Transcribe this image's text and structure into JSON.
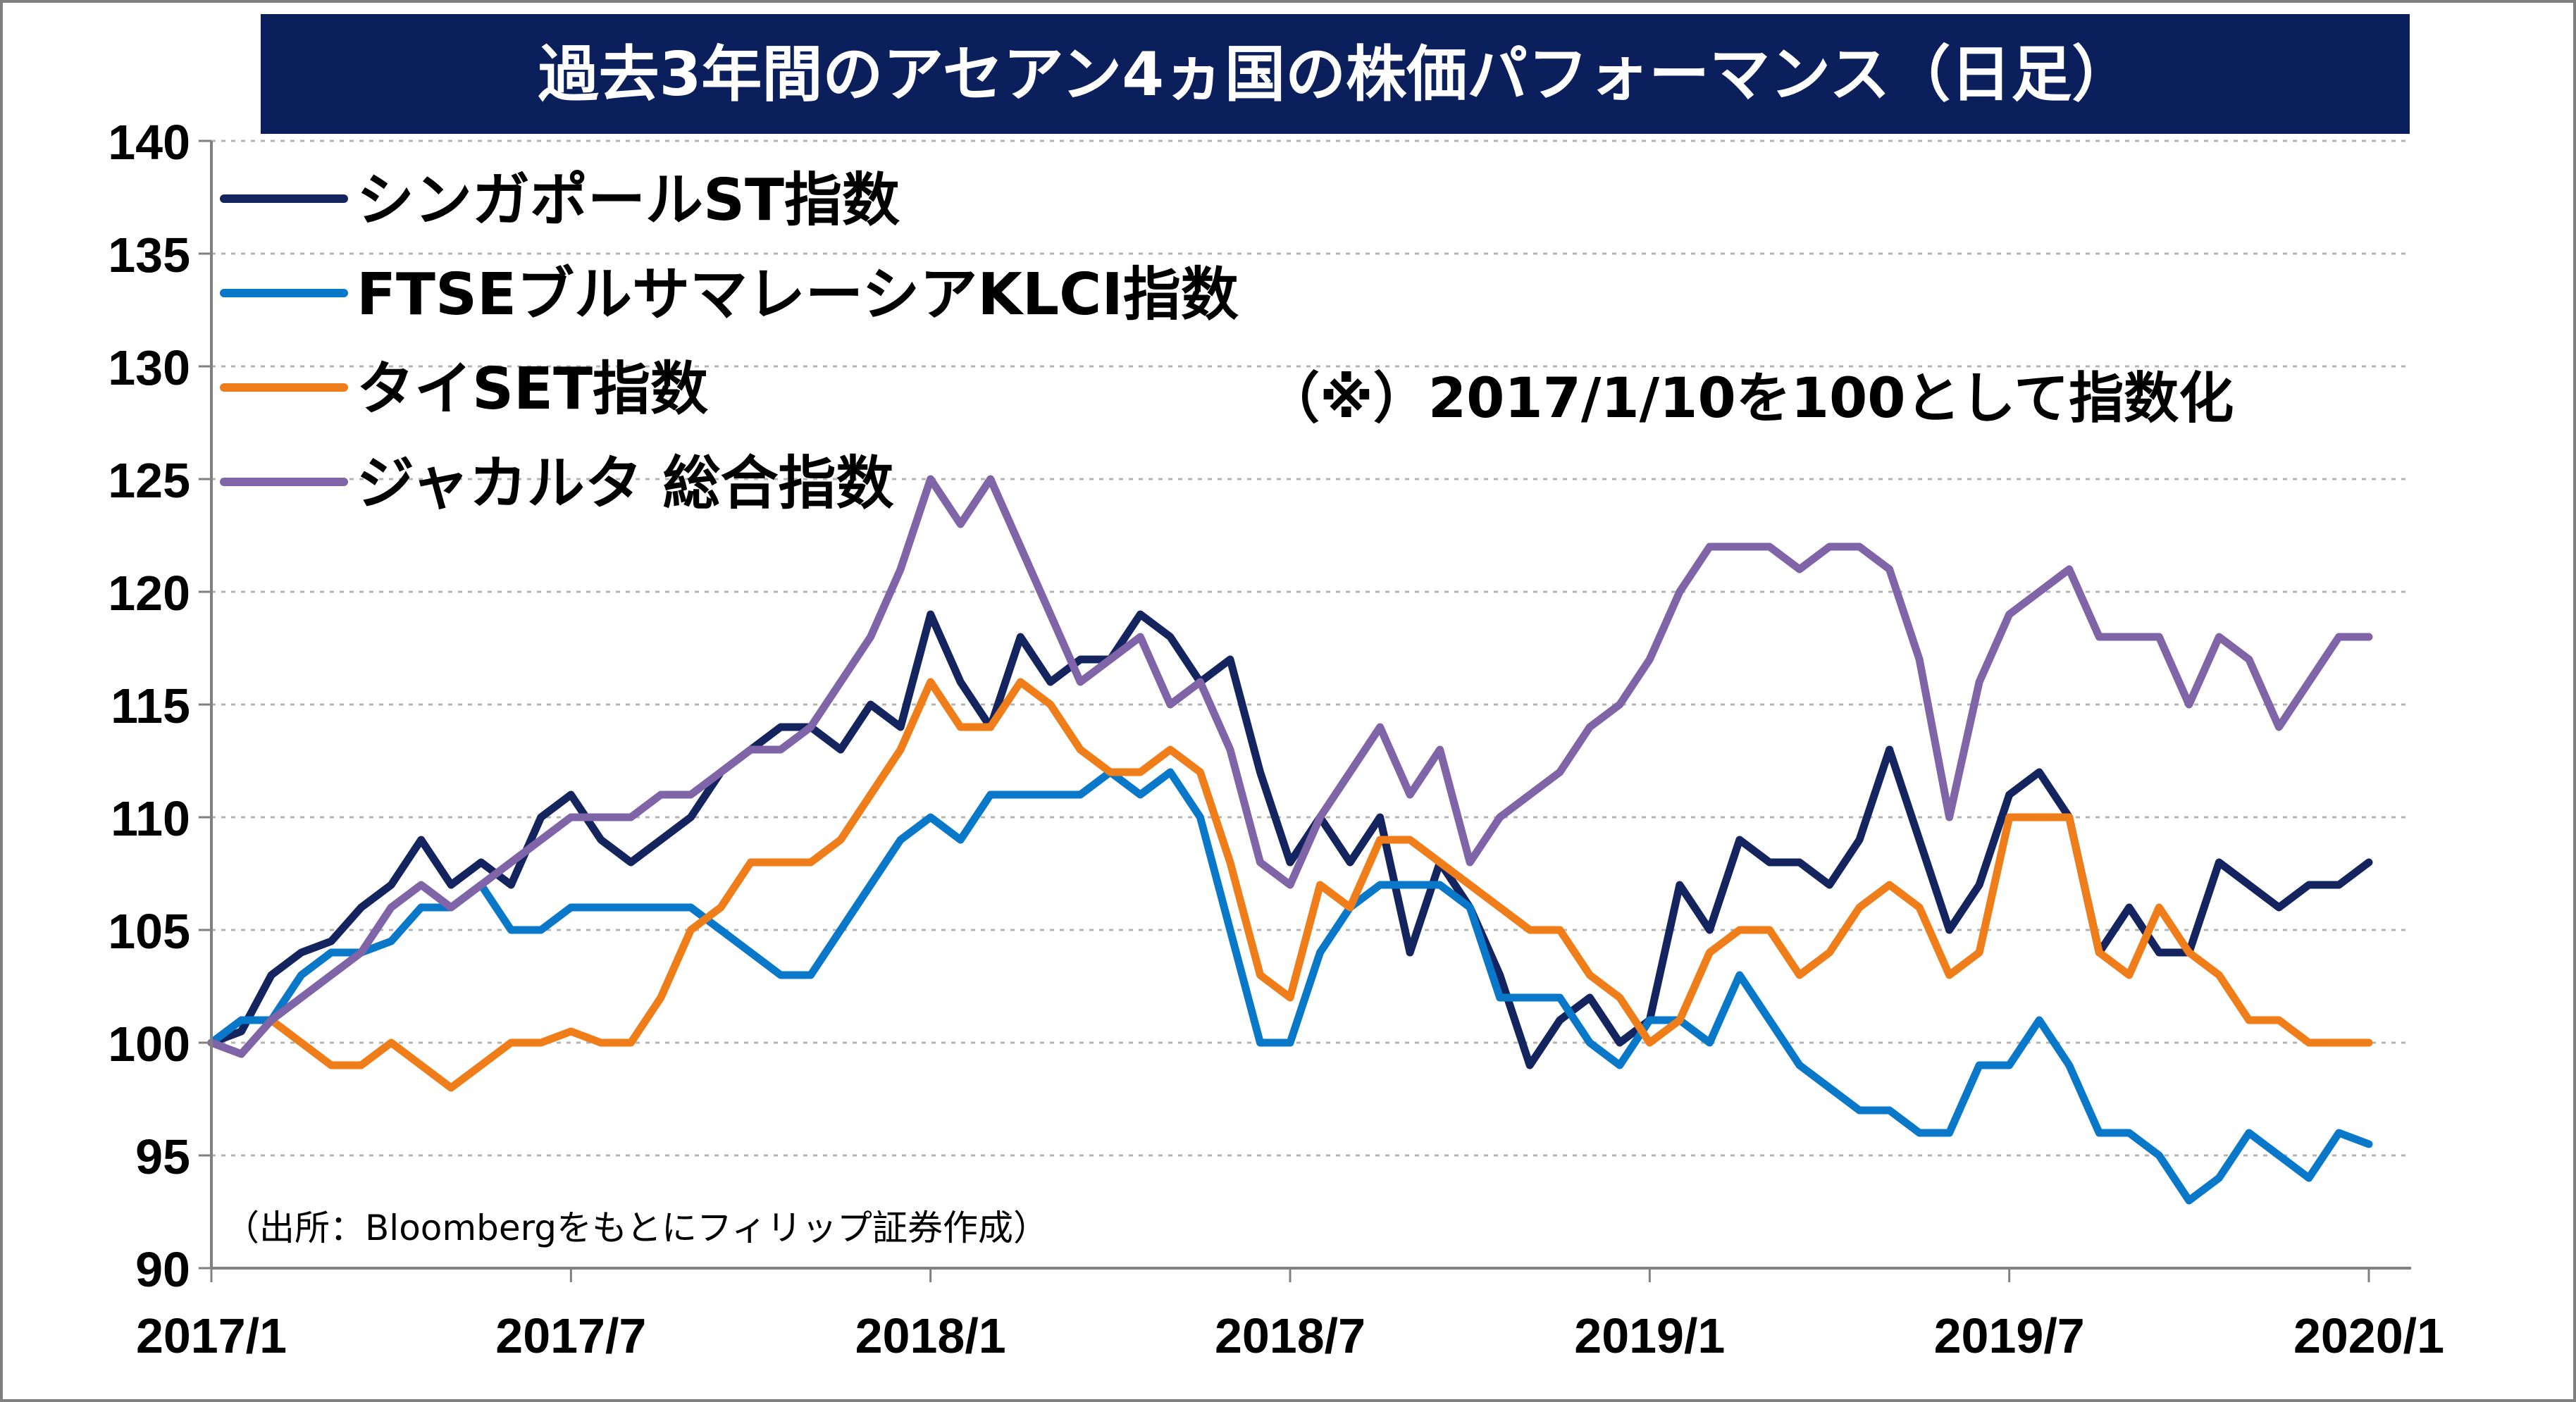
{
  "chart_data": {
    "type": "line",
    "title": "過去3年間のアセアン4ヵ国の株価パフォーマンス（日足）",
    "title_bg": "#0b1f5c",
    "note": "（※）2017/1/10を100として指数化",
    "source": "（出所：Bloombergをもとにフィリップ証券作成）",
    "xlabel": "",
    "ylabel": "",
    "ylim": [
      90,
      140
    ],
    "yticks": [
      90,
      95,
      100,
      105,
      110,
      115,
      120,
      125,
      130,
      135,
      140
    ],
    "xlim": [
      0,
      36
    ],
    "xticks": [
      {
        "label": "2017/1",
        "m": 0
      },
      {
        "label": "2017/7",
        "m": 6
      },
      {
        "label": "2018/1",
        "m": 12
      },
      {
        "label": "2018/7",
        "m": 18
      },
      {
        "label": "2019/1",
        "m": 24
      },
      {
        "label": "2019/7",
        "m": 30
      },
      {
        "label": "2020/1",
        "m": 36
      }
    ],
    "grid": true,
    "legend_position": "top-left",
    "series": [
      {
        "name": "シンガポールST指数",
        "color": "#14245e",
        "points": [
          [
            0,
            100
          ],
          [
            0.5,
            100.5
          ],
          [
            1,
            103
          ],
          [
            1.5,
            104
          ],
          [
            2,
            104.5
          ],
          [
            2.5,
            106
          ],
          [
            3,
            107
          ],
          [
            3.5,
            109
          ],
          [
            4,
            107
          ],
          [
            4.5,
            108
          ],
          [
            5,
            107
          ],
          [
            5.5,
            110
          ],
          [
            6,
            111
          ],
          [
            6.5,
            109
          ],
          [
            7,
            108
          ],
          [
            7.5,
            109
          ],
          [
            8,
            110
          ],
          [
            8.5,
            112
          ],
          [
            9,
            113
          ],
          [
            9.5,
            114
          ],
          [
            10,
            114
          ],
          [
            10.5,
            113
          ],
          [
            11,
            115
          ],
          [
            11.5,
            114
          ],
          [
            12,
            119
          ],
          [
            12.5,
            116
          ],
          [
            13,
            114
          ],
          [
            13.5,
            118
          ],
          [
            14,
            116
          ],
          [
            14.5,
            117
          ],
          [
            15,
            117
          ],
          [
            15.5,
            119
          ],
          [
            16,
            118
          ],
          [
            16.5,
            116
          ],
          [
            17,
            117
          ],
          [
            17.5,
            112
          ],
          [
            18,
            108
          ],
          [
            18.5,
            110
          ],
          [
            19,
            108
          ],
          [
            19.5,
            110
          ],
          [
            20,
            104
          ],
          [
            20.5,
            108
          ],
          [
            21,
            106
          ],
          [
            21.5,
            103
          ],
          [
            22,
            99
          ],
          [
            22.5,
            101
          ],
          [
            23,
            102
          ],
          [
            23.5,
            100
          ],
          [
            24,
            101
          ],
          [
            24.5,
            107
          ],
          [
            25,
            105
          ],
          [
            25.5,
            109
          ],
          [
            26,
            108
          ],
          [
            26.5,
            108
          ],
          [
            27,
            107
          ],
          [
            27.5,
            109
          ],
          [
            28,
            113
          ],
          [
            28.5,
            109
          ],
          [
            29,
            105
          ],
          [
            29.5,
            107
          ],
          [
            30,
            111
          ],
          [
            30.5,
            112
          ],
          [
            31,
            110
          ],
          [
            31.5,
            104
          ],
          [
            32,
            106
          ],
          [
            32.5,
            104
          ],
          [
            33,
            104
          ],
          [
            33.5,
            108
          ],
          [
            34,
            107
          ],
          [
            34.5,
            106
          ],
          [
            35,
            107
          ],
          [
            35.5,
            107
          ],
          [
            36,
            108
          ]
        ]
      },
      {
        "name": "FTSEブルサマレーシアKLCI指数",
        "color": "#0a78c9",
        "points": [
          [
            0,
            100
          ],
          [
            0.5,
            101
          ],
          [
            1,
            101
          ],
          [
            1.5,
            103
          ],
          [
            2,
            104
          ],
          [
            2.5,
            104
          ],
          [
            3,
            104.5
          ],
          [
            3.5,
            106
          ],
          [
            4,
            106
          ],
          [
            4.5,
            107
          ],
          [
            5,
            105
          ],
          [
            5.5,
            105
          ],
          [
            6,
            106
          ],
          [
            6.5,
            106
          ],
          [
            7,
            106
          ],
          [
            7.5,
            106
          ],
          [
            8,
            106
          ],
          [
            8.5,
            105
          ],
          [
            9,
            104
          ],
          [
            9.5,
            103
          ],
          [
            10,
            103
          ],
          [
            10.5,
            105
          ],
          [
            11,
            107
          ],
          [
            11.5,
            109
          ],
          [
            12,
            110
          ],
          [
            12.5,
            109
          ],
          [
            13,
            111
          ],
          [
            13.5,
            111
          ],
          [
            14,
            111
          ],
          [
            14.5,
            111
          ],
          [
            15,
            112
          ],
          [
            15.5,
            111
          ],
          [
            16,
            112
          ],
          [
            16.5,
            110
          ],
          [
            17,
            105
          ],
          [
            17.5,
            100
          ],
          [
            18,
            100
          ],
          [
            18.5,
            104
          ],
          [
            19,
            106
          ],
          [
            19.5,
            107
          ],
          [
            20,
            107
          ],
          [
            20.5,
            107
          ],
          [
            21,
            106
          ],
          [
            21.5,
            102
          ],
          [
            22,
            102
          ],
          [
            22.5,
            102
          ],
          [
            23,
            100
          ],
          [
            23.5,
            99
          ],
          [
            24,
            101
          ],
          [
            24.5,
            101
          ],
          [
            25,
            100
          ],
          [
            25.5,
            103
          ],
          [
            26,
            101
          ],
          [
            26.5,
            99
          ],
          [
            27,
            98
          ],
          [
            27.5,
            97
          ],
          [
            28,
            97
          ],
          [
            28.5,
            96
          ],
          [
            29,
            96
          ],
          [
            29.5,
            99
          ],
          [
            30,
            99
          ],
          [
            30.5,
            101
          ],
          [
            31,
            99
          ],
          [
            31.5,
            96
          ],
          [
            32,
            96
          ],
          [
            32.5,
            95
          ],
          [
            33,
            93
          ],
          [
            33.5,
            94
          ],
          [
            34,
            96
          ],
          [
            34.5,
            95
          ],
          [
            35,
            94
          ],
          [
            35.5,
            96
          ],
          [
            36,
            95.5
          ]
        ]
      },
      {
        "name": "タイSET指数",
        "color": "#ee7d1a",
        "points": [
          [
            0,
            100
          ],
          [
            0.5,
            99.5
          ],
          [
            1,
            101
          ],
          [
            1.5,
            100
          ],
          [
            2,
            99
          ],
          [
            2.5,
            99
          ],
          [
            3,
            100
          ],
          [
            3.5,
            99
          ],
          [
            4,
            98
          ],
          [
            4.5,
            99
          ],
          [
            5,
            100
          ],
          [
            5.5,
            100
          ],
          [
            6,
            100.5
          ],
          [
            6.5,
            100
          ],
          [
            7,
            100
          ],
          [
            7.5,
            102
          ],
          [
            8,
            105
          ],
          [
            8.5,
            106
          ],
          [
            9,
            108
          ],
          [
            9.5,
            108
          ],
          [
            10,
            108
          ],
          [
            10.5,
            109
          ],
          [
            11,
            111
          ],
          [
            11.5,
            113
          ],
          [
            12,
            116
          ],
          [
            12.5,
            114
          ],
          [
            13,
            114
          ],
          [
            13.5,
            116
          ],
          [
            14,
            115
          ],
          [
            14.5,
            113
          ],
          [
            15,
            112
          ],
          [
            15.5,
            112
          ],
          [
            16,
            113
          ],
          [
            16.5,
            112
          ],
          [
            17,
            108
          ],
          [
            17.5,
            103
          ],
          [
            18,
            102
          ],
          [
            18.5,
            107
          ],
          [
            19,
            106
          ],
          [
            19.5,
            109
          ],
          [
            20,
            109
          ],
          [
            20.5,
            108
          ],
          [
            21,
            107
          ],
          [
            21.5,
            106
          ],
          [
            22,
            105
          ],
          [
            22.5,
            105
          ],
          [
            23,
            103
          ],
          [
            23.5,
            102
          ],
          [
            24,
            100
          ],
          [
            24.5,
            101
          ],
          [
            25,
            104
          ],
          [
            25.5,
            105
          ],
          [
            26,
            105
          ],
          [
            26.5,
            103
          ],
          [
            27,
            104
          ],
          [
            27.5,
            106
          ],
          [
            28,
            107
          ],
          [
            28.5,
            106
          ],
          [
            29,
            103
          ],
          [
            29.5,
            104
          ],
          [
            30,
            110
          ],
          [
            30.5,
            110
          ],
          [
            31,
            110
          ],
          [
            31.5,
            104
          ],
          [
            32,
            103
          ],
          [
            32.5,
            106
          ],
          [
            33,
            104
          ],
          [
            33.5,
            103
          ],
          [
            34,
            101
          ],
          [
            34.5,
            101
          ],
          [
            35,
            100
          ],
          [
            35.5,
            100
          ],
          [
            36,
            100
          ]
        ]
      },
      {
        "name": "ジャカルタ 総合指数",
        "color": "#8064a8",
        "points": [
          [
            0,
            100
          ],
          [
            0.5,
            99.5
          ],
          [
            1,
            101
          ],
          [
            1.5,
            102
          ],
          [
            2,
            103
          ],
          [
            2.5,
            104
          ],
          [
            3,
            106
          ],
          [
            3.5,
            107
          ],
          [
            4,
            106
          ],
          [
            4.5,
            107
          ],
          [
            5,
            108
          ],
          [
            5.5,
            109
          ],
          [
            6,
            110
          ],
          [
            6.5,
            110
          ],
          [
            7,
            110
          ],
          [
            7.5,
            111
          ],
          [
            8,
            111
          ],
          [
            8.5,
            112
          ],
          [
            9,
            113
          ],
          [
            9.5,
            113
          ],
          [
            10,
            114
          ],
          [
            10.5,
            116
          ],
          [
            11,
            118
          ],
          [
            11.5,
            121
          ],
          [
            12,
            125
          ],
          [
            12.5,
            123
          ],
          [
            13,
            125
          ],
          [
            13.5,
            122
          ],
          [
            14,
            119
          ],
          [
            14.5,
            116
          ],
          [
            15,
            117
          ],
          [
            15.5,
            118
          ],
          [
            16,
            115
          ],
          [
            16.5,
            116
          ],
          [
            17,
            113
          ],
          [
            17.5,
            108
          ],
          [
            18,
            107
          ],
          [
            18.5,
            110
          ],
          [
            19,
            112
          ],
          [
            19.5,
            114
          ],
          [
            20,
            111
          ],
          [
            20.5,
            113
          ],
          [
            21,
            108
          ],
          [
            21.5,
            110
          ],
          [
            22,
            111
          ],
          [
            22.5,
            112
          ],
          [
            23,
            114
          ],
          [
            23.5,
            115
          ],
          [
            24,
            117
          ],
          [
            24.5,
            120
          ],
          [
            25,
            122
          ],
          [
            25.5,
            122
          ],
          [
            26,
            122
          ],
          [
            26.5,
            121
          ],
          [
            27,
            122
          ],
          [
            27.5,
            122
          ],
          [
            28,
            121
          ],
          [
            28.5,
            117
          ],
          [
            29,
            110
          ],
          [
            29.5,
            116
          ],
          [
            30,
            119
          ],
          [
            30.5,
            120
          ],
          [
            31,
            121
          ],
          [
            31.5,
            118
          ],
          [
            32,
            118
          ],
          [
            32.5,
            118
          ],
          [
            33,
            115
          ],
          [
            33.5,
            118
          ],
          [
            34,
            117
          ],
          [
            34.5,
            114
          ],
          [
            35,
            116
          ],
          [
            35.5,
            118
          ],
          [
            36,
            118
          ]
        ]
      }
    ]
  }
}
